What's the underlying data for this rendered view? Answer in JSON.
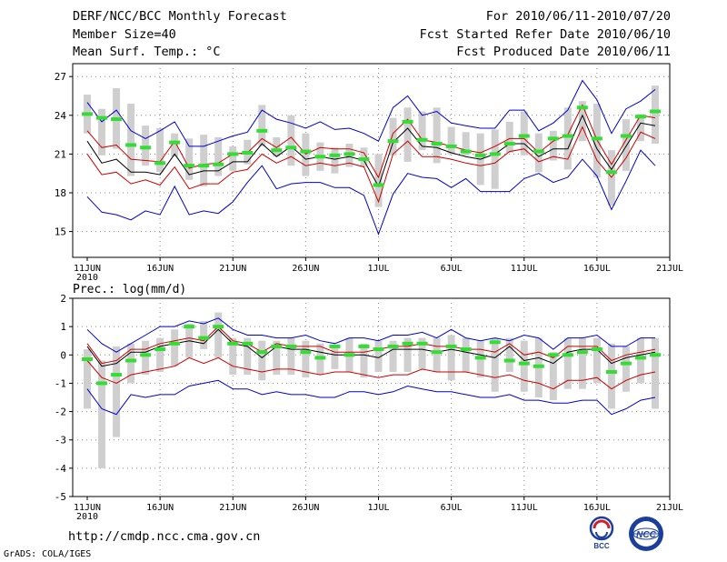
{
  "header": {
    "title": "DERF/NCC/BCC Monthly Forecast",
    "member_size": "Member Size=40",
    "variable": "Mean Surf. Temp.: °C",
    "period": "For 2010/06/11-2010/07/20",
    "fcst_started": "Fcst Started Refer Date 2010/06/10",
    "fcst_produced": "Fcst Produced Date 2010/06/11"
  },
  "footer": {
    "url": "http://cmdp.ncc.cma.gov.cn",
    "grads": "GrADS: COLA/IGES",
    "logo_bcc": "BCC",
    "logo_ncc": "NCC"
  },
  "colors": {
    "outer": "#0000cc",
    "inner": "#cc0000",
    "mean": "#000000",
    "median": "#33dd33",
    "bar": "#cfcfcf",
    "grid": "#888888"
  },
  "chart_data": [
    {
      "type": "line",
      "title": "",
      "ylabel": "Mean Surf. Temp.: °C",
      "ylim": [
        13,
        28
      ],
      "yticks": [
        15,
        18,
        21,
        24,
        27
      ],
      "x_range": [
        11,
        51
      ],
      "xticks": [
        {
          "day": 11,
          "label": "11JUN",
          "sublabel": "2010"
        },
        {
          "day": 16,
          "label": "16JUN"
        },
        {
          "day": 21,
          "label": "21JUN"
        },
        {
          "day": 26,
          "label": "26JUN"
        },
        {
          "day": 31,
          "label": "1JUL"
        },
        {
          "day": 36,
          "label": "6JUL"
        },
        {
          "day": 41,
          "label": "11JUL"
        },
        {
          "day": 46,
          "label": "16JUL"
        },
        {
          "day": 51,
          "label": "21JUL"
        }
      ],
      "days": [
        11,
        12,
        13,
        14,
        15,
        16,
        17,
        18,
        19,
        20,
        21,
        22,
        23,
        24,
        25,
        26,
        27,
        28,
        29,
        30,
        31,
        32,
        33,
        34,
        35,
        36,
        37,
        38,
        39,
        40,
        41,
        42,
        43,
        44,
        45,
        46,
        47,
        48,
        49,
        50
      ],
      "series": [
        {
          "name": "max",
          "values": [
            25.0,
            23.5,
            24.4,
            22.8,
            22.2,
            22.8,
            23.5,
            21.6,
            21.6,
            22.0,
            22.4,
            22.7,
            24.4,
            23.7,
            23.4,
            23.0,
            23.5,
            22.9,
            23.0,
            22.6,
            22.0,
            24.6,
            25.5,
            24.0,
            24.3,
            23.4,
            23.2,
            23.0,
            23.0,
            24.4,
            24.4,
            22.8,
            23.4,
            24.4,
            26.7,
            25.2,
            22.6,
            24.5,
            25.1,
            26.0
          ]
        },
        {
          "name": "upper",
          "values": [
            22.8,
            21.5,
            21.7,
            20.6,
            20.5,
            20.4,
            22.0,
            19.9,
            20.2,
            20.3,
            21.0,
            21.1,
            22.2,
            21.5,
            22.3,
            21.0,
            21.5,
            21.4,
            21.4,
            21.1,
            19.2,
            22.6,
            23.7,
            22.1,
            21.9,
            21.6,
            21.3,
            21.1,
            21.6,
            22.2,
            22.2,
            21.1,
            22.0,
            22.5,
            24.8,
            22.1,
            20.2,
            22.1,
            24.0,
            23.8
          ]
        },
        {
          "name": "mean",
          "values": [
            22.0,
            20.3,
            20.6,
            19.6,
            19.6,
            19.4,
            21.0,
            19.4,
            19.7,
            19.7,
            20.4,
            20.4,
            21.8,
            20.8,
            21.6,
            20.6,
            20.8,
            20.6,
            20.8,
            20.5,
            18.5,
            21.9,
            23.0,
            21.6,
            21.5,
            21.1,
            20.8,
            20.6,
            21.0,
            21.8,
            21.8,
            20.8,
            21.4,
            21.4,
            24.0,
            21.4,
            19.8,
            21.6,
            23.4,
            23.2
          ]
        },
        {
          "name": "lower",
          "values": [
            21.0,
            19.4,
            19.6,
            18.7,
            19.0,
            18.6,
            20.0,
            18.3,
            18.7,
            18.7,
            19.6,
            19.8,
            21.0,
            20.3,
            20.8,
            20.1,
            20.3,
            20.1,
            20.3,
            20.0,
            17.3,
            21.0,
            22.0,
            20.8,
            20.8,
            20.6,
            20.3,
            20.1,
            20.3,
            21.2,
            21.4,
            20.4,
            20.8,
            20.6,
            23.1,
            20.5,
            19.2,
            20.7,
            22.7,
            22.2
          ]
        },
        {
          "name": "min",
          "values": [
            17.7,
            16.5,
            16.3,
            15.9,
            16.6,
            16.3,
            18.5,
            16.3,
            16.6,
            16.4,
            17.3,
            18.8,
            20.1,
            18.3,
            18.7,
            18.8,
            18.8,
            18.4,
            18.4,
            17.8,
            14.8,
            17.9,
            19.5,
            19.2,
            19.1,
            18.4,
            19.1,
            18.1,
            18.1,
            18.1,
            19.1,
            19.5,
            18.8,
            19.2,
            20.6,
            19.3,
            16.7,
            18.9,
            21.3,
            20.1
          ]
        },
        {
          "name": "box_top",
          "values": [
            25.6,
            24.5,
            26.1,
            24.9,
            23.2,
            23.0,
            22.6,
            22.2,
            22.5,
            22.3,
            21.6,
            22.1,
            24.8,
            22.3,
            24.0,
            22.6,
            21.9,
            21.5,
            21.8,
            21.5,
            21.0,
            23.8,
            24.6,
            24.3,
            24.6,
            23.1,
            22.7,
            22.6,
            22.9,
            23.5,
            24.3,
            22.6,
            22.8,
            24.6,
            25.1,
            24.9,
            21.3,
            23.7,
            24.1,
            26.3
          ]
        },
        {
          "name": "box_bottom",
          "values": [
            22.6,
            20.9,
            21.4,
            19.3,
            20.1,
            19.6,
            20.8,
            19.0,
            18.5,
            19.3,
            19.7,
            20.2,
            21.6,
            20.8,
            20.1,
            19.3,
            19.7,
            19.5,
            20.0,
            20.0,
            16.9,
            20.9,
            20.4,
            21.3,
            20.3,
            21.0,
            20.9,
            18.6,
            18.3,
            21.1,
            20.9,
            19.6,
            20.5,
            19.8,
            22.0,
            19.2,
            17.0,
            19.7,
            22.0,
            21.8
          ]
        },
        {
          "name": "median",
          "values": [
            24.1,
            23.8,
            23.7,
            21.7,
            21.5,
            20.3,
            21.9,
            20.1,
            20.1,
            20.2,
            21.0,
            21.1,
            22.8,
            21.3,
            21.5,
            21.2,
            20.8,
            20.9,
            21.0,
            20.6,
            18.6,
            22.0,
            23.5,
            22.1,
            21.8,
            21.6,
            21.2,
            20.9,
            21.0,
            21.8,
            22.4,
            21.2,
            22.2,
            22.4,
            24.6,
            22.2,
            19.6,
            22.4,
            23.9,
            24.3
          ]
        }
      ]
    },
    {
      "type": "line",
      "title": "Prec.: log(mm/d)",
      "ylabel": "Prec.: log(mm/d)",
      "ylim": [
        -5,
        2
      ],
      "yticks": [
        -5,
        -4,
        -3,
        -2,
        -1,
        0,
        1,
        2
      ],
      "x_range": [
        11,
        51
      ],
      "xticks": [
        {
          "day": 11,
          "label": "11JUN",
          "sublabel": "2010"
        },
        {
          "day": 16,
          "label": "16JUN"
        },
        {
          "day": 21,
          "label": "21JUN"
        },
        {
          "day": 26,
          "label": "26JUN"
        },
        {
          "day": 31,
          "label": "1JUL"
        },
        {
          "day": 36,
          "label": "6JUL"
        },
        {
          "day": 41,
          "label": "11JUL"
        },
        {
          "day": 46,
          "label": "16JUL"
        },
        {
          "day": 51,
          "label": "21JUL"
        }
      ],
      "days": [
        11,
        12,
        13,
        14,
        15,
        16,
        17,
        18,
        19,
        20,
        21,
        22,
        23,
        24,
        25,
        26,
        27,
        28,
        29,
        30,
        31,
        32,
        33,
        34,
        35,
        36,
        37,
        38,
        39,
        40,
        41,
        42,
        43,
        44,
        45,
        46,
        47,
        48,
        49,
        50
      ],
      "series": [
        {
          "name": "max",
          "values": [
            0.9,
            0.4,
            0.1,
            0.4,
            0.7,
            1.0,
            1.0,
            1.2,
            1.1,
            1.3,
            0.9,
            0.7,
            0.7,
            0.6,
            0.6,
            0.7,
            0.5,
            0.4,
            0.6,
            0.6,
            0.5,
            0.7,
            0.7,
            0.8,
            0.6,
            0.9,
            0.6,
            0.5,
            0.6,
            0.5,
            0.7,
            0.6,
            0.2,
            0.6,
            0.6,
            0.7,
            0.3,
            0.3,
            0.6,
            0.6
          ]
        },
        {
          "name": "upper",
          "values": [
            0.4,
            -0.3,
            -0.2,
            0.2,
            0.2,
            0.4,
            0.5,
            0.6,
            0.5,
            1.0,
            0.5,
            0.4,
            0.1,
            0.4,
            0.3,
            0.3,
            0.3,
            0.1,
            0.1,
            0.1,
            0.2,
            0.3,
            0.3,
            0.4,
            0.3,
            0.3,
            0.2,
            0.2,
            0.1,
            0.4,
            0.0,
            0.1,
            -0.1,
            0.3,
            0.3,
            0.3,
            -0.2,
            0.0,
            0.1,
            0.2
          ]
        },
        {
          "name": "mean",
          "values": [
            0.3,
            -0.4,
            -0.3,
            0.1,
            0.1,
            0.3,
            0.4,
            0.5,
            0.4,
            0.9,
            0.4,
            0.3,
            -0.1,
            0.3,
            0.2,
            0.2,
            0.1,
            0.0,
            0.0,
            0.0,
            -0.1,
            0.2,
            0.2,
            0.2,
            0.1,
            0.2,
            0.1,
            0.0,
            -0.1,
            0.3,
            -0.2,
            -0.1,
            -0.3,
            0.1,
            0.2,
            0.2,
            -0.3,
            -0.1,
            0.0,
            0.1
          ]
        },
        {
          "name": "lower",
          "values": [
            -0.2,
            -0.8,
            -1.0,
            -0.7,
            -0.6,
            -0.5,
            -0.4,
            -0.1,
            -0.3,
            -0.1,
            -0.4,
            -0.5,
            -0.6,
            -0.5,
            -0.5,
            -0.6,
            -0.7,
            -0.6,
            -0.6,
            -0.7,
            -0.8,
            -0.7,
            -0.7,
            -0.5,
            -0.6,
            -0.6,
            -0.6,
            -0.7,
            -0.8,
            -0.7,
            -0.9,
            -1.0,
            -1.2,
            -0.9,
            -0.9,
            -0.8,
            -1.2,
            -0.9,
            -0.7,
            -0.6
          ]
        },
        {
          "name": "min",
          "values": [
            -1.2,
            -1.9,
            -2.1,
            -1.4,
            -1.5,
            -1.4,
            -1.4,
            -1.1,
            -1.0,
            -0.9,
            -1.2,
            -1.2,
            -1.4,
            -1.3,
            -1.4,
            -1.4,
            -1.5,
            -1.5,
            -1.3,
            -1.3,
            -1.4,
            -1.3,
            -1.1,
            -1.2,
            -1.3,
            -1.3,
            -1.4,
            -1.5,
            -1.5,
            -1.4,
            -1.6,
            -1.6,
            -1.7,
            -1.7,
            -1.6,
            -1.6,
            -2.1,
            -1.9,
            -1.6,
            -1.5
          ]
        },
        {
          "name": "box_top",
          "values": [
            0.2,
            -0.2,
            0.3,
            0.4,
            0.5,
            0.6,
            0.9,
            1.1,
            1.2,
            1.5,
            0.6,
            0.6,
            0.5,
            0.5,
            0.6,
            0.5,
            0.4,
            0.3,
            0.6,
            0.4,
            0.5,
            0.5,
            0.6,
            0.6,
            0.6,
            0.7,
            0.6,
            0.5,
            0.6,
            0.6,
            0.5,
            0.6,
            0.1,
            0.6,
            0.6,
            0.6,
            0.4,
            0.3,
            0.6,
            0.6
          ]
        },
        {
          "name": "box_bottom",
          "values": [
            -1.9,
            -4.0,
            -2.9,
            -1.0,
            -0.7,
            -0.6,
            -0.4,
            -0.1,
            0.2,
            -0.1,
            -0.7,
            -0.7,
            -0.9,
            -0.7,
            -0.7,
            -0.8,
            -0.7,
            -0.5,
            -0.6,
            -0.8,
            -0.6,
            -0.6,
            -0.6,
            -0.5,
            -0.6,
            -0.9,
            -0.6,
            -0.8,
            -1.3,
            -0.6,
            -1.3,
            -1.5,
            -1.6,
            -1.2,
            -1.2,
            -1.0,
            -1.9,
            -1.3,
            -1.0,
            -1.9
          ]
        },
        {
          "name": "median",
          "values": [
            -0.15,
            -1.0,
            -0.7,
            -0.2,
            0.0,
            0.2,
            0.4,
            1.0,
            0.6,
            1.0,
            0.4,
            0.4,
            0.1,
            0.3,
            0.3,
            0.1,
            -0.1,
            0.3,
            0.0,
            0.3,
            0.2,
            0.3,
            0.4,
            0.4,
            0.1,
            0.3,
            0.2,
            -0.1,
            0.45,
            -0.2,
            -0.3,
            -0.4,
            0.0,
            0.0,
            0.1,
            0.2,
            -0.6,
            -0.3,
            -0.1,
            0.0
          ]
        }
      ]
    }
  ]
}
